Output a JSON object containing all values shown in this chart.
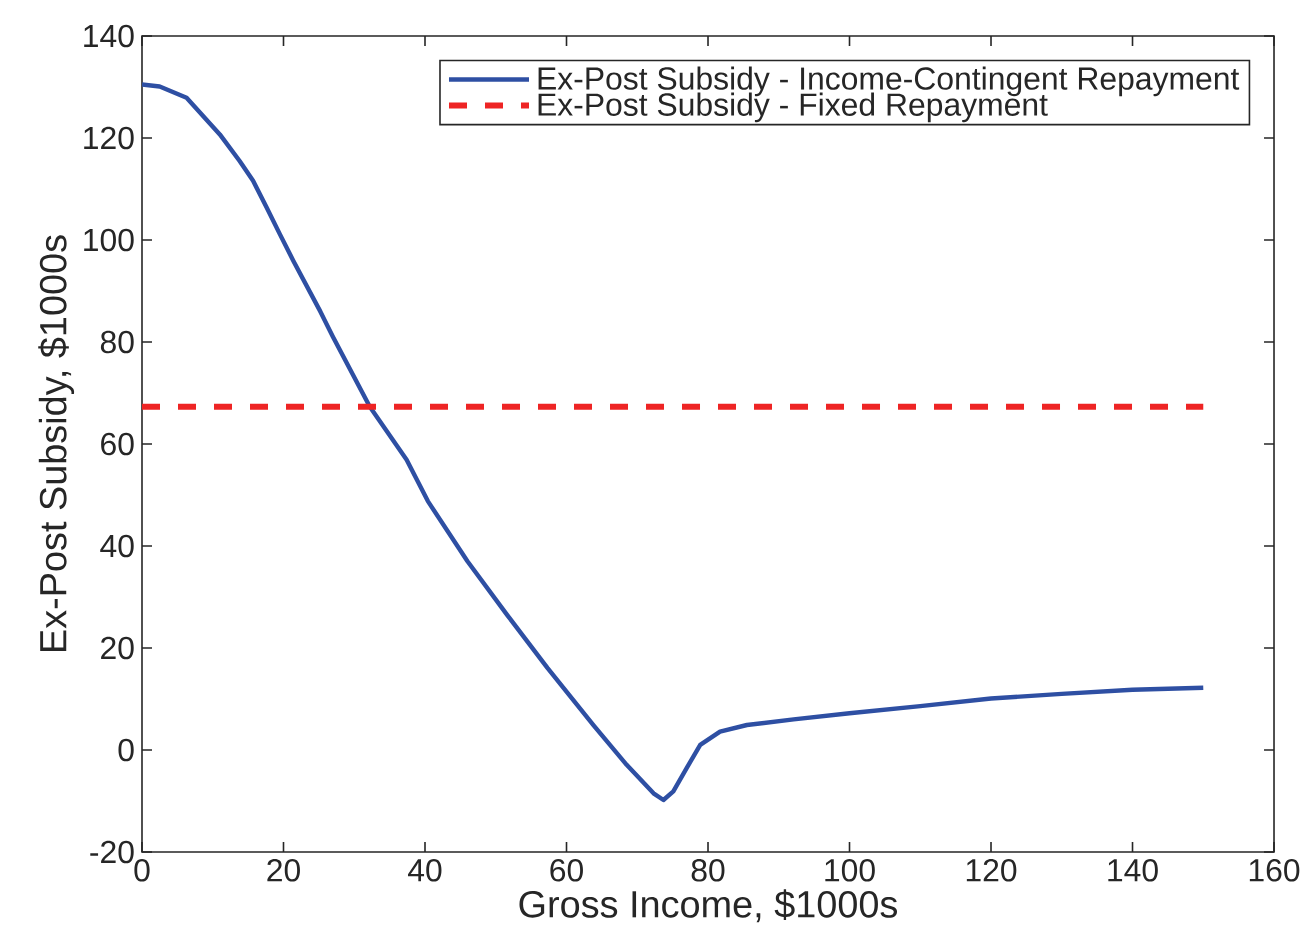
{
  "chart_data": {
    "type": "line",
    "xlabel": "Gross Income, $1000s",
    "ylabel": "Ex-Post Subsidy, $1000s",
    "series": [
      {
        "name": "Ex-Post Subsidy - Income-Contingent Repayment",
        "color": "#2e4fa3",
        "line_style": "solid",
        "x": [
          0,
          2.5,
          6.3,
          11,
          13.8,
          15.7,
          17.6,
          19.5,
          21.4,
          25.2,
          27,
          32.2,
          37.4,
          40.4,
          46,
          51.6,
          57.3,
          63.8,
          68.5,
          72.3,
          73.7,
          75.1,
          77,
          78.9,
          81.7,
          85.5,
          92.1,
          100,
          110,
          120,
          130,
          140,
          150
        ],
        "values": [
          130.5,
          130.1,
          127.9,
          120.7,
          115.5,
          111.6,
          106.4,
          101.1,
          95.9,
          86.0,
          81.0,
          67.3,
          56.9,
          48.8,
          37,
          26.5,
          16.1,
          4.9,
          -2.9,
          -8.5,
          -9.8,
          -8.1,
          -3.5,
          1.0,
          3.6,
          4.9,
          6.0,
          7.2,
          8.6,
          10.1,
          11.0,
          11.8,
          12.2
        ]
      },
      {
        "name": "Ex-Post Subsidy - Fixed Repayment",
        "color": "#ee2424",
        "line_style": "dashed",
        "x": [
          0,
          150
        ],
        "values": [
          67.3,
          67.3
        ]
      }
    ],
    "xlim": [
      0,
      160
    ],
    "xticks": [
      0,
      20,
      40,
      60,
      80,
      100,
      120,
      140,
      160
    ],
    "ylim": [
      -20,
      140
    ],
    "yticks": [
      -20,
      0,
      20,
      40,
      60,
      80,
      100,
      120,
      140
    ],
    "legend": "top right"
  }
}
